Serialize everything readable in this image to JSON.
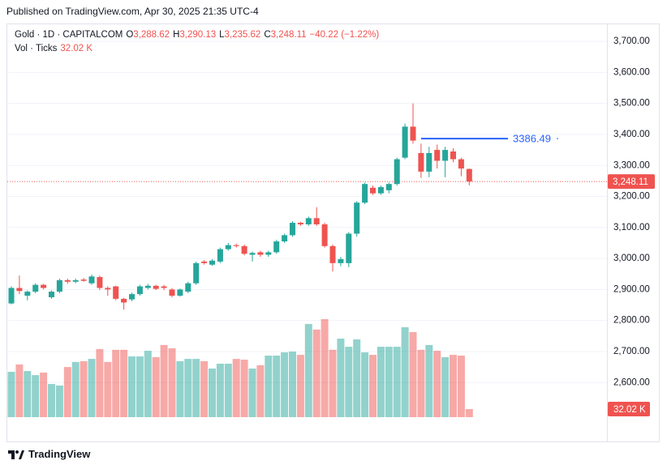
{
  "header": {
    "published": "Published on TradingView.com, Apr 30, 2025 21:35 UTC-4"
  },
  "legend": {
    "symbol": "Gold · 1D · CAPITALCOM",
    "o": "O",
    "open": "3,288.62",
    "h": "H",
    "high": "3,290.13",
    "l": "L",
    "low": "3,235.62",
    "c": "C",
    "close": "3,248.11",
    "change": "−40.22 (−1.22%)",
    "volume_title": "Vol · Ticks",
    "volume": "32.02 K"
  },
  "chart_data": {
    "type": "candlestick",
    "open": [
      2855,
      2905,
      2880,
      2893,
      2915,
      2875,
      2893,
      2930,
      2925,
      2932,
      2920,
      2940,
      2905,
      2910,
      2870,
      2868,
      2885,
      2905,
      2912,
      2910,
      2900,
      2880,
      2893,
      2920,
      2990,
      2980,
      2990,
      3030,
      3043,
      3040,
      3012,
      3020,
      3012,
      3020,
      3055,
      3075,
      3115,
      3110,
      3130,
      3110,
      3040,
      2985,
      2985,
      3080,
      3180,
      3228,
      3210,
      3220,
      3240,
      3325,
      3425,
      3340,
      3280,
      3350,
      3315,
      3345,
      3320,
      3288.62
    ],
    "high": [
      2910,
      2945,
      2897,
      2920,
      2918,
      2897,
      2935,
      2935,
      2935,
      2937,
      2948,
      2945,
      2910,
      2912,
      2873,
      2890,
      2915,
      2918,
      2915,
      2915,
      2905,
      2903,
      2925,
      2990,
      2995,
      2998,
      3035,
      3050,
      3048,
      3045,
      3022,
      3025,
      3025,
      3060,
      3080,
      3120,
      3118,
      3135,
      3165,
      3115,
      3045,
      3005,
      3085,
      3185,
      3245,
      3235,
      3235,
      3245,
      3325,
      3435,
      3500,
      3370,
      3360,
      3367,
      3360,
      3355,
      3325,
      3290.13
    ],
    "low": [
      2852,
      2885,
      2865,
      2888,
      2900,
      2870,
      2888,
      2918,
      2920,
      2925,
      2915,
      2898,
      2880,
      2865,
      2835,
      2862,
      2880,
      2900,
      2898,
      2898,
      2875,
      2877,
      2888,
      2915,
      2980,
      2976,
      2985,
      3025,
      3035,
      3010,
      2990,
      3005,
      3005,
      3015,
      3050,
      3070,
      3105,
      3105,
      3105,
      3035,
      2958,
      2975,
      2972,
      3070,
      3175,
      3205,
      3205,
      3210,
      3235,
      3320,
      3370,
      3260,
      3262,
      3290,
      3262,
      3310,
      3265,
      3235.62
    ],
    "close": [
      2905,
      2895,
      2893,
      2915,
      2905,
      2893,
      2930,
      2925,
      2930,
      2928,
      2942,
      2905,
      2900,
      2870,
      2858,
      2885,
      2910,
      2912,
      2902,
      2905,
      2880,
      2900,
      2920,
      2985,
      2985,
      2993,
      3030,
      3043,
      3040,
      3015,
      3018,
      3012,
      3020,
      3055,
      3075,
      3115,
      3110,
      3130,
      3110,
      3040,
      2985,
      2998,
      3080,
      3180,
      3240,
      3210,
      3230,
      3240,
      3320,
      3425,
      3380,
      3280,
      3340,
      3315,
      3350,
      3320,
      3290,
      3248.11
    ],
    "volume": [
      179,
      208,
      182,
      166,
      176,
      131,
      125,
      198,
      218,
      221,
      230,
      269,
      218,
      266,
      266,
      240,
      240,
      262,
      237,
      285,
      272,
      221,
      230,
      230,
      221,
      192,
      211,
      211,
      230,
      227,
      192,
      205,
      243,
      243,
      256,
      259,
      246,
      368,
      346,
      387,
      266,
      310,
      278,
      307,
      256,
      246,
      278,
      278,
      278,
      355,
      336,
      266,
      285,
      262,
      237,
      246,
      243,
      32.02
    ],
    "up_color": "#26a69a",
    "down_color": "#ef5350",
    "ylim": [
      2410,
      3755
    ],
    "yticks": [
      {
        "value": 2600,
        "label": "2,600.00"
      },
      {
        "value": 2700,
        "label": "2,700.00"
      },
      {
        "value": 2800,
        "label": "2,800.00"
      },
      {
        "value": 2900,
        "label": "2,900.00"
      },
      {
        "value": 3000,
        "label": "3,000.00"
      },
      {
        "value": 3100,
        "label": "3,100.00"
      },
      {
        "value": 3200,
        "label": "3,200.00"
      },
      {
        "value": 3300,
        "label": "3,300.00"
      },
      {
        "value": 3400,
        "label": "3,400.00"
      },
      {
        "value": 3500,
        "label": "3,500.00"
      },
      {
        "value": 3600,
        "label": "3,600.00"
      },
      {
        "value": 3700,
        "label": "3,700.00"
      }
    ],
    "grid": true,
    "last_price": {
      "value": 3248.11,
      "label": "3,248.11"
    },
    "last_volume": {
      "value": 32.02,
      "label": "32.02 K"
    },
    "hline": {
      "value": 3386.49,
      "color": "#2962ff"
    }
  },
  "footer": {
    "brand": "TradingView"
  }
}
